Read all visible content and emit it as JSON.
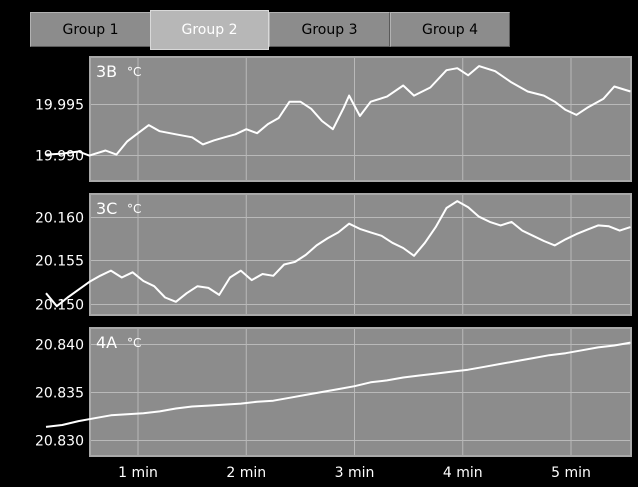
{
  "tabs": [
    {
      "label": "Group 1",
      "active": false
    },
    {
      "label": "Group 2",
      "active": true
    },
    {
      "label": "Group 3",
      "active": false
    },
    {
      "label": "Group 4",
      "active": false
    }
  ],
  "colors": {
    "background": "#000000",
    "plot_background": "#8c8c8c",
    "grid": "#b9b9b9",
    "trace": "#ffffff",
    "tab_active": "#b7b7b7",
    "tab_inactive": "#8c8c8c"
  },
  "chart_data": [
    {
      "type": "line",
      "title": "3B",
      "unit": "°C",
      "ylim": [
        19.9875,
        19.9995
      ],
      "yticks": [
        "19.995",
        "19.990"
      ],
      "ytick_values": [
        19.995,
        19.99
      ],
      "xlim": [
        0.15,
        5.55
      ],
      "series": [
        {
          "x": [
            0.15,
            0.3,
            0.45,
            0.55,
            0.7,
            0.8,
            0.9,
            1.0,
            1.1,
            1.2,
            1.35,
            1.5,
            1.6,
            1.7,
            1.8,
            1.9,
            2.0,
            2.1,
            2.2,
            2.3,
            2.4,
            2.5,
            2.6,
            2.7,
            2.8,
            2.9,
            2.95,
            3.05,
            3.15,
            3.3,
            3.45,
            3.55,
            3.7,
            3.85,
            3.95,
            4.05,
            4.15,
            4.3,
            4.45,
            4.6,
            4.75,
            4.85,
            4.95,
            5.05,
            5.15,
            5.3,
            5.4,
            5.55
          ],
          "y": [
            19.99,
            19.9901,
            19.9903,
            19.9899,
            19.9904,
            19.99,
            19.9913,
            19.9921,
            19.9929,
            19.9923,
            19.992,
            19.9917,
            19.991,
            19.9914,
            19.9917,
            19.992,
            19.9925,
            19.9921,
            19.993,
            19.9936,
            19.9952,
            19.9952,
            19.9945,
            19.9933,
            19.9925,
            19.9946,
            19.9958,
            19.9938,
            19.9952,
            19.9957,
            19.9968,
            19.9958,
            19.9966,
            19.9983,
            19.9985,
            19.9978,
            19.9987,
            19.9982,
            19.9971,
            19.9962,
            19.9958,
            19.9952,
            19.9944,
            19.9939,
            19.9946,
            19.9955,
            19.9967,
            19.9962
          ]
        }
      ]
    },
    {
      "type": "line",
      "title": "3C",
      "unit": "°C",
      "ylim": [
        20.1488,
        20.1625
      ],
      "yticks": [
        "20.160",
        "20.155",
        "20.150"
      ],
      "ytick_values": [
        20.16,
        20.155,
        20.15
      ],
      "xlim": [
        0.15,
        5.55
      ],
      "series": [
        {
          "x": [
            0.15,
            0.25,
            0.35,
            0.45,
            0.55,
            0.65,
            0.75,
            0.85,
            0.95,
            1.05,
            1.15,
            1.25,
            1.35,
            1.45,
            1.55,
            1.65,
            1.75,
            1.85,
            1.95,
            2.05,
            2.15,
            2.25,
            2.35,
            2.45,
            2.55,
            2.65,
            2.75,
            2.85,
            2.95,
            3.05,
            3.15,
            3.25,
            3.35,
            3.45,
            3.55,
            3.65,
            3.75,
            3.85,
            3.95,
            4.05,
            4.15,
            4.25,
            4.35,
            4.45,
            4.55,
            4.65,
            4.75,
            4.85,
            4.95,
            5.05,
            5.15,
            5.25,
            5.35,
            5.45,
            5.55
          ],
          "y": [
            20.1512,
            20.1497,
            20.1507,
            20.1516,
            20.1525,
            20.1532,
            20.1538,
            20.153,
            20.1536,
            20.1526,
            20.152,
            20.1507,
            20.1502,
            20.1512,
            20.152,
            20.1518,
            20.151,
            20.153,
            20.1538,
            20.1527,
            20.1534,
            20.1532,
            20.1545,
            20.1548,
            20.1556,
            20.1567,
            20.1575,
            20.1582,
            20.1592,
            20.1586,
            20.1582,
            20.1578,
            20.157,
            20.1564,
            20.1555,
            20.157,
            20.1588,
            20.161,
            20.1618,
            20.1611,
            20.16,
            20.1594,
            20.159,
            20.1594,
            20.1584,
            20.1578,
            20.1572,
            20.1567,
            20.1574,
            20.158,
            20.1585,
            20.159,
            20.1589,
            20.1584,
            20.1588
          ]
        }
      ]
    },
    {
      "type": "line",
      "title": "4A",
      "unit": "°C",
      "ylim": [
        20.8285,
        20.8415
      ],
      "yticks": [
        "20.840",
        "20.835",
        "20.830"
      ],
      "ytick_values": [
        20.84,
        20.835,
        20.83
      ],
      "xlim": [
        0.15,
        5.55
      ],
      "series": [
        {
          "x": [
            0.15,
            0.3,
            0.45,
            0.6,
            0.75,
            0.9,
            1.05,
            1.2,
            1.35,
            1.5,
            1.65,
            1.8,
            1.95,
            2.1,
            2.25,
            2.4,
            2.55,
            2.7,
            2.85,
            3.0,
            3.15,
            3.3,
            3.45,
            3.6,
            3.75,
            3.9,
            4.05,
            4.2,
            4.35,
            4.5,
            4.65,
            4.8,
            4.95,
            5.1,
            5.25,
            5.4,
            5.55
          ],
          "y": [
            20.8314,
            20.8316,
            20.832,
            20.8323,
            20.8326,
            20.8327,
            20.8328,
            20.833,
            20.8333,
            20.8335,
            20.8336,
            20.8337,
            20.8338,
            20.834,
            20.8341,
            20.8344,
            20.8347,
            20.835,
            20.8353,
            20.8356,
            20.836,
            20.8362,
            20.8365,
            20.8367,
            20.8369,
            20.8371,
            20.8373,
            20.8376,
            20.8379,
            20.8382,
            20.8385,
            20.8388,
            20.839,
            20.8393,
            20.8396,
            20.8398,
            20.8401
          ]
        }
      ]
    }
  ],
  "x_axis": {
    "ticks": [
      "1 min",
      "2 min",
      "3 min",
      "4 min",
      "5 min"
    ],
    "tick_values": [
      1,
      2,
      3,
      4,
      5
    ]
  }
}
